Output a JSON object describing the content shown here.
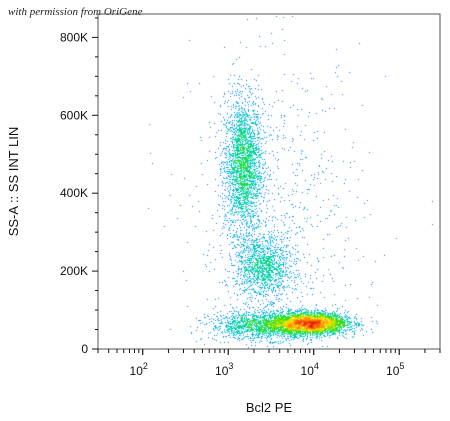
{
  "watermark": "with permission from OriGene",
  "chart_data": {
    "type": "scatter",
    "title": "",
    "xlabel": "Bcl2 PE",
    "ylabel": "SS-A :: SS INT LIN",
    "xscale": "log",
    "xlim": [
      30,
      300000
    ],
    "ylim": [
      0,
      860000
    ],
    "x_tick_labels": [
      {
        "base": "10",
        "exp": "2",
        "value": 100
      },
      {
        "base": "10",
        "exp": "3",
        "value": 1000
      },
      {
        "base": "10",
        "exp": "4",
        "value": 10000
      },
      {
        "base": "10",
        "exp": "5",
        "value": 100000
      }
    ],
    "y_tick_labels": [
      {
        "label": "0",
        "value": 0
      },
      {
        "label": "200K",
        "value": 200000
      },
      {
        "label": "400K",
        "value": 400000
      },
      {
        "label": "600K",
        "value": 600000
      },
      {
        "label": "800K",
        "value": 800000
      }
    ],
    "grid": false,
    "legend": "none",
    "density_colormap": [
      "#0000cc",
      "#00a0ff",
      "#00d8a0",
      "#40e000",
      "#ffe000",
      "#ff7000",
      "#e00000"
    ],
    "populations": [
      {
        "x_center": 1500,
        "y_center": 470000,
        "x_spread_log10": 0.11,
        "y_spread": 85000,
        "points": 2600,
        "peak_density": 0.55
      },
      {
        "x_center": 2600,
        "y_center": 210000,
        "x_spread_log10": 0.16,
        "y_spread": 40000,
        "points": 1300,
        "peak_density": 0.5
      },
      {
        "x_center": 9000,
        "y_center": 65000,
        "x_spread_log10": 0.22,
        "y_spread": 14000,
        "points": 4200,
        "peak_density": 1.0
      },
      {
        "x_center": 2500,
        "y_center": 60000,
        "x_spread_log10": 0.3,
        "y_spread": 18000,
        "points": 1500,
        "peak_density": 0.45
      },
      {
        "x_center": 4000,
        "y_center": 300000,
        "x_spread_log10": 0.5,
        "y_spread": 230000,
        "points": 900,
        "peak_density": 0.05
      }
    ]
  }
}
